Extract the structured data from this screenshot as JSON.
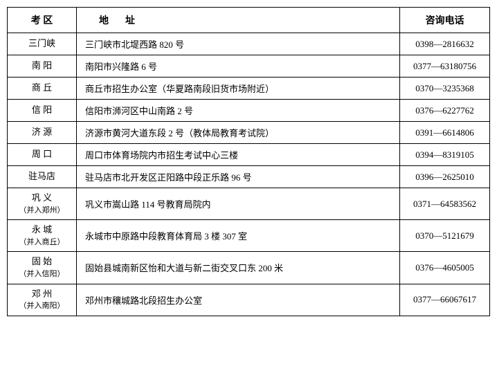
{
  "table": {
    "headers": {
      "district": "考 区",
      "address": "地址",
      "phone": "咨询电话"
    },
    "rows": [
      {
        "district": "三门峡",
        "district_sub": "",
        "address": "三门峡市北堤西路 820 号",
        "phone": "0398—2816632"
      },
      {
        "district": "南 阳",
        "district_sub": "",
        "address": "南阳市兴隆路 6 号",
        "phone": "0377—63180756"
      },
      {
        "district": "商 丘",
        "district_sub": "",
        "address": "商丘市招生办公室（华夏路南段旧货市场附近）",
        "phone": "0370—3235368"
      },
      {
        "district": "信 阳",
        "district_sub": "",
        "address": "信阳市浉河区中山南路 2 号",
        "phone": "0376—6227762"
      },
      {
        "district": "济 源",
        "district_sub": "",
        "address": "济源市黄河大道东段 2 号（教体局教育考试院）",
        "phone": "0391—6614806"
      },
      {
        "district": "周 口",
        "district_sub": "",
        "address": "周口市体育场院内市招生考试中心三楼",
        "phone": "0394—8319105"
      },
      {
        "district": "驻马店",
        "district_sub": "",
        "address": "驻马店市北开发区正阳路中段正乐路 96 号",
        "phone": "0396—2625010"
      },
      {
        "district": "巩 义",
        "district_sub": "（并入郑州）",
        "address": "巩义市嵩山路 114 号教育局院内",
        "phone": "0371—64583562"
      },
      {
        "district": "永 城",
        "district_sub": "（并入商丘）",
        "address": "永城市中原路中段教育体育局 3 楼 307 室",
        "phone": "0370—5121679"
      },
      {
        "district": "固 始",
        "district_sub": "（并入信阳）",
        "address": "固始县城南新区怡和大道与新二街交叉口东 200 米",
        "phone": "0376—4605005"
      },
      {
        "district": "邓 州",
        "district_sub": "（并入南阳）",
        "address": "邓州市穰城路北段招生办公室",
        "phone": "0377—66067617"
      }
    ]
  },
  "styling": {
    "border_color": "#000000",
    "background_color": "#ffffff",
    "text_color": "#000000",
    "font_family": "SimSun",
    "header_fontsize": 14,
    "cell_fontsize": 13,
    "sub_fontsize": 11,
    "col_widths": {
      "district": 100,
      "phone": 130
    }
  }
}
